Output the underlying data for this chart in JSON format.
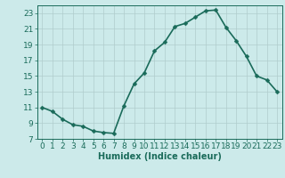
{
  "x": [
    0,
    1,
    2,
    3,
    4,
    5,
    6,
    7,
    8,
    9,
    10,
    11,
    12,
    13,
    14,
    15,
    16,
    17,
    18,
    19,
    20,
    21,
    22,
    23
  ],
  "y": [
    11.0,
    10.5,
    9.5,
    8.8,
    8.6,
    8.0,
    7.8,
    7.7,
    11.2,
    14.0,
    15.4,
    18.2,
    19.3,
    21.3,
    21.7,
    22.5,
    23.3,
    23.4,
    21.2,
    19.5,
    17.5,
    15.0,
    14.5,
    13.0
  ],
  "line_color": "#1a6b5a",
  "marker": "D",
  "marker_size": 2.5,
  "bg_color": "#cceaea",
  "grid_color": "#b0cccc",
  "xlabel": "Humidex (Indice chaleur)",
  "xlim": [
    -0.5,
    23.5
  ],
  "ylim": [
    7,
    24
  ],
  "yticks": [
    7,
    9,
    11,
    13,
    15,
    17,
    19,
    21,
    23
  ],
  "xticks": [
    0,
    1,
    2,
    3,
    4,
    5,
    6,
    7,
    8,
    9,
    10,
    11,
    12,
    13,
    14,
    15,
    16,
    17,
    18,
    19,
    20,
    21,
    22,
    23
  ],
  "xlabel_fontsize": 7,
  "tick_fontsize": 6.5,
  "line_width": 1.2
}
